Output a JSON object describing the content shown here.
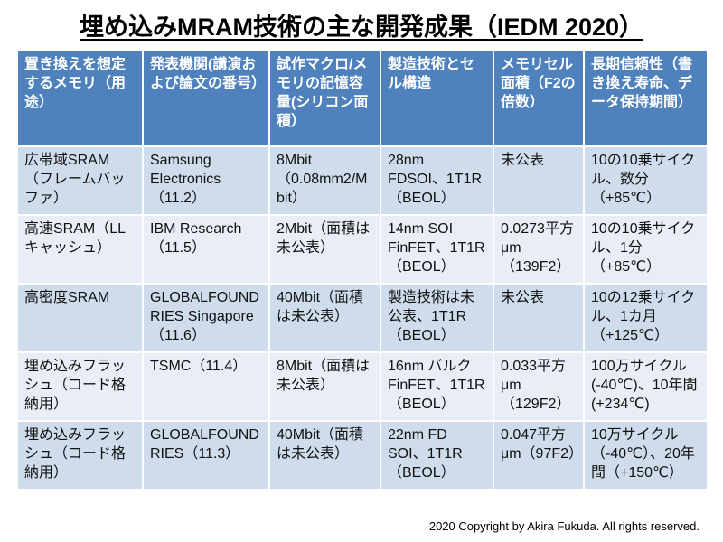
{
  "title": "埋め込みMRAM技術の主な開発成果（IEDM 2020）",
  "footer": "2020  Copyright by Akira Fukuda. All rights reserved.",
  "colors": {
    "header_bg": "#4f81bd",
    "header_text": "#ffffff",
    "band_dark": "#cfdcec",
    "band_light": "#e9eef6"
  },
  "table": {
    "headers": [
      "置き換えを想定するメモリ（用途）",
      "発表機関(講演および論文の番号）",
      "試作マクロ/メモリの記憶容量(シリコン面積）",
      "製造技術とセル構造",
      "メモリセル面積（F2の倍数）",
      "長期信頼性（書き換え寿命、データ保持期間）"
    ],
    "rows": [
      [
        "広帯域SRAM（フレームバッファ）",
        "Samsung Electronics（11.2）",
        "8Mbit（0.08mm2/Mbit）",
        "28nm FDSOI、1T1R（BEOL）",
        "未公表",
        "10の10乗サイクル、数分（+85℃）"
      ],
      [
        "高速SRAM（LLキャッシュ）",
        "IBM Research（11.5）",
        "2Mbit（面積は未公表）",
        "14nm SOI FinFET、1T1R（BEOL）",
        "0.0273平方μm（139F2）",
        "10の10乗サイクル、1分（+85℃）"
      ],
      [
        "高密度SRAM",
        "GLOBALFOUNDRIES Singapore（11.6）",
        "40Mbit（面積は未公表）",
        "製造技術は未公表、1T1R（BEOL）",
        "未公表",
        "10の12乗サイクル、1カ月（+125℃）"
      ],
      [
        "埋め込みフラッシュ（コード格納用）",
        "TSMC（11.4）",
        "8Mbit（面積は未公表）",
        "16nm バルクFinFET、1T1R（BEOL）",
        "0.033平方μm（129F2）",
        "100万サイクル(-40℃)、10年間(+234℃)"
      ],
      [
        "埋め込みフラッシュ（コード格納用）",
        "GLOBALFOUNDRIES（11.3）",
        "40Mbit（面積は未公表）",
        "22nm FD SOI、1T1R（BEOL）",
        "0.047平方μm（97F2）",
        "10万サイクル（-40℃）、20年間（+150℃）"
      ]
    ]
  }
}
